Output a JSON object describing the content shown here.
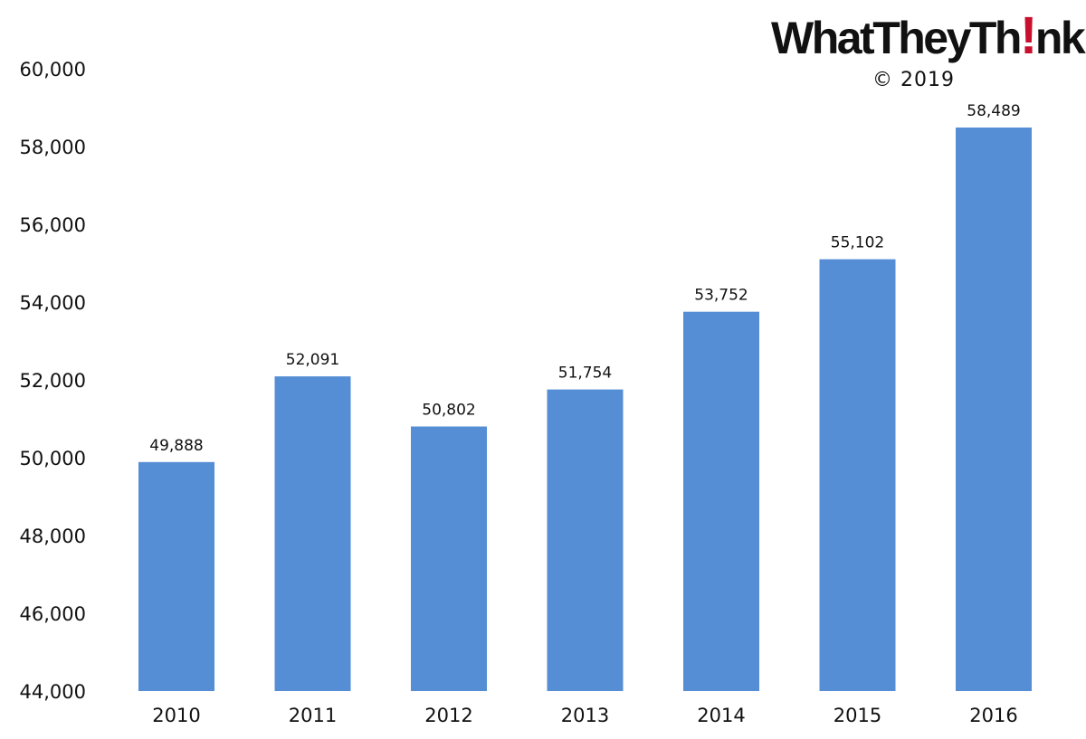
{
  "branding": {
    "logo_text_before": "WhatTheyTh",
    "logo_text_mark": "!",
    "logo_text_after": "nk",
    "copyright": "© 2019"
  },
  "chart_data": {
    "type": "bar",
    "categories": [
      "2010",
      "2011",
      "2012",
      "2013",
      "2014",
      "2015",
      "2016"
    ],
    "values": [
      49888,
      52091,
      50802,
      51754,
      53752,
      55102,
      58489
    ],
    "value_labels": [
      "49,888",
      "52,091",
      "50,802",
      "51,754",
      "53,752",
      "55,102",
      "58,489"
    ],
    "title": "",
    "xlabel": "",
    "ylabel": "",
    "ylim": [
      44000,
      60000
    ],
    "yticks": [
      44000,
      46000,
      48000,
      50000,
      52000,
      54000,
      56000,
      58000,
      60000
    ],
    "ytick_labels": [
      "44,000",
      "46,000",
      "48,000",
      "50,000",
      "52,000",
      "54,000",
      "56,000",
      "58,000",
      "60,000"
    ],
    "grid": false,
    "legend": "none",
    "bar_color": "#558ed5"
  }
}
